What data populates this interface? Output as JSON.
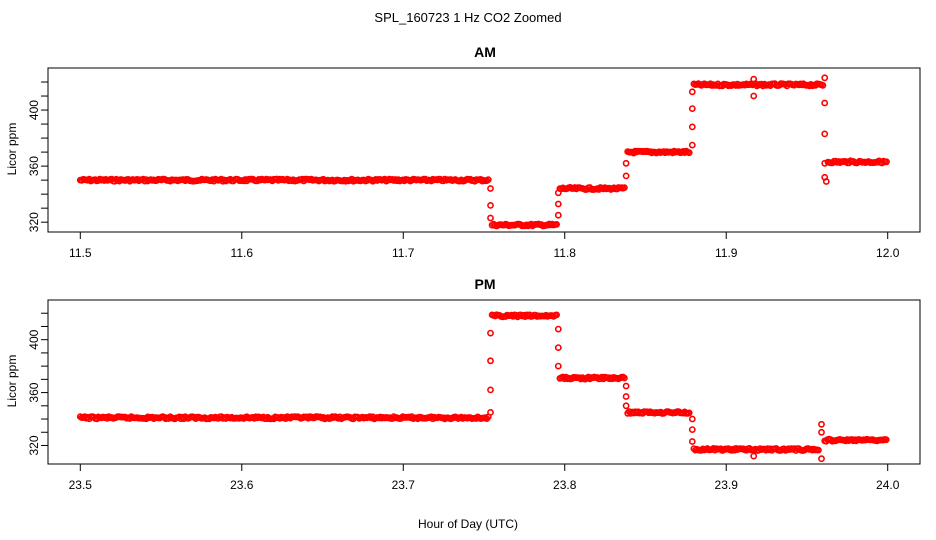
{
  "chart_data": {
    "type": "scatter",
    "title": "SPL_160723  1 Hz CO2 Zoomed",
    "xlabel": "Hour of Day (UTC)",
    "marker_color": "#ff0000",
    "marker": "open-circle",
    "panels": [
      {
        "title": "AM",
        "ylabel": "Licor ppm",
        "xlim": [
          11.48,
          12.02
        ],
        "ylim": [
          313,
          430
        ],
        "xticks": [
          "11.5",
          "11.6",
          "11.7",
          "11.8",
          "11.9",
          "12.0"
        ],
        "yticks": [
          "320",
          "360",
          "400"
        ],
        "segments": [
          {
            "x0": 11.5,
            "x1": 11.753,
            "y": 350
          },
          {
            "x0": 11.755,
            "x1": 11.795,
            "y": 318
          },
          {
            "x0": 11.797,
            "x1": 11.837,
            "y": 344
          },
          {
            "x0": 11.839,
            "x1": 11.878,
            "y": 370
          },
          {
            "x0": 11.88,
            "x1": 11.96,
            "y": 418
          },
          {
            "x0": 11.963,
            "x1": 12.0,
            "y": 363
          }
        ],
        "transitions": [
          {
            "x": 11.754,
            "y": [
              344,
              332,
              323
            ]
          },
          {
            "x": 11.796,
            "y": [
              325,
              333,
              341
            ]
          },
          {
            "x": 11.838,
            "y": [
              353,
              362
            ]
          },
          {
            "x": 11.879,
            "y": [
              375,
              388,
              401,
              413
            ]
          },
          {
            "x": 11.961,
            "y": [
              423,
              405,
              383,
              362,
              352
            ]
          },
          {
            "x": 11.917,
            "y": [
              422,
              410
            ]
          },
          {
            "x": 11.962,
            "y": [
              349
            ]
          }
        ]
      },
      {
        "title": "PM",
        "ylabel": "Licor ppm",
        "xlim": [
          23.48,
          24.02
        ],
        "ylim": [
          306,
          430
        ],
        "xticks": [
          "23.5",
          "23.6",
          "23.7",
          "23.8",
          "23.9",
          "24.0"
        ],
        "yticks": [
          "320",
          "360",
          "400"
        ],
        "segments": [
          {
            "x0": 23.5,
            "x1": 23.753,
            "y": 341
          },
          {
            "x0": 23.755,
            "x1": 23.795,
            "y": 418
          },
          {
            "x0": 23.797,
            "x1": 23.837,
            "y": 371
          },
          {
            "x0": 23.839,
            "x1": 23.878,
            "y": 345
          },
          {
            "x0": 23.88,
            "x1": 23.958,
            "y": 317
          },
          {
            "x0": 23.961,
            "x1": 24.0,
            "y": 324
          }
        ],
        "transitions": [
          {
            "x": 23.754,
            "y": [
              345,
              362,
              384,
              405
            ]
          },
          {
            "x": 23.796,
            "y": [
              408,
              394,
              380
            ]
          },
          {
            "x": 23.838,
            "y": [
              365,
              357,
              350
            ]
          },
          {
            "x": 23.879,
            "y": [
              340,
              332,
              323
            ]
          },
          {
            "x": 23.917,
            "y": [
              312
            ]
          },
          {
            "x": 23.959,
            "y": [
              336,
              330,
              310
            ]
          }
        ]
      }
    ]
  }
}
